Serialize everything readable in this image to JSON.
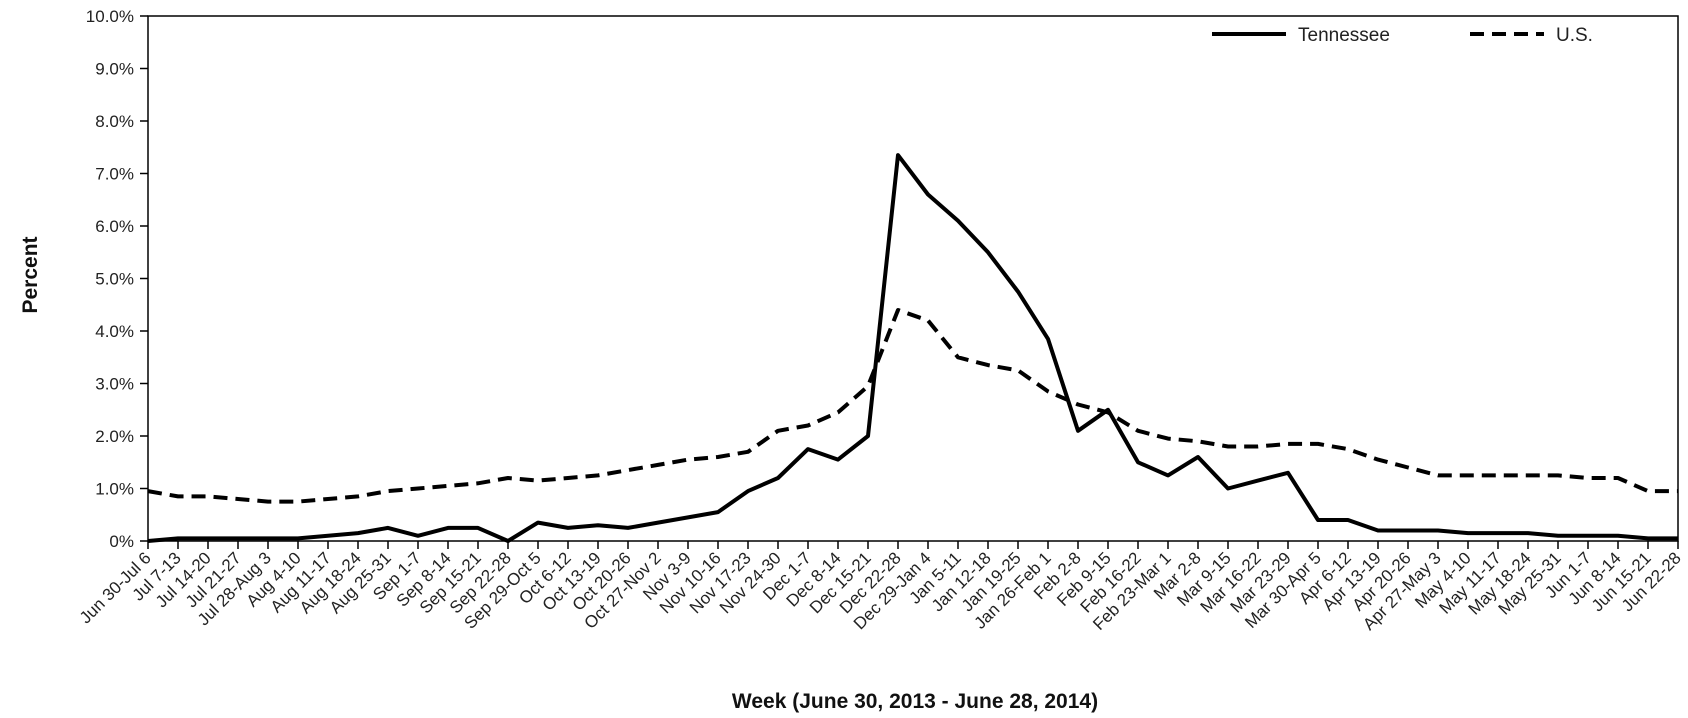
{
  "chart_data": {
    "type": "line",
    "title": "",
    "xlabel": "Week (June 30, 2013 - June 28, 2014)",
    "ylabel": "Percent",
    "ylim": [
      0,
      10
    ],
    "y_ticks": [
      "0%",
      "1.0%",
      "2.0%",
      "3.0%",
      "4.0%",
      "5.0%",
      "6.0%",
      "7.0%",
      "8.0%",
      "9.0%",
      "10.0%"
    ],
    "grid": false,
    "legend_position": "top-right",
    "x_labels": [
      "Jun 30-Jul 6",
      "Jul 7-13",
      "Jul 14-20",
      "Jul 21-27",
      "Jul 28-Aug 3",
      "Aug 4-10",
      "Aug 11-17",
      "Aug 18-24",
      "Aug 25-31",
      "Sep 1-7",
      "Sep 8-14",
      "Sep 15-21",
      "Sep 22-28",
      "Sep 29-Oct 5",
      "Oct 6-12",
      "Oct 13-19",
      "Oct 20-26",
      "Oct 27-Nov 2",
      "Nov 3-9",
      "Nov 10-16",
      "Nov 17-23",
      "Nov 24-30",
      "Dec 1-7",
      "Dec 8-14",
      "Dec 15-21",
      "Dec 22-28",
      "Dec 29-Jan 4",
      "Jan 5-11",
      "Jan 12-18",
      "Jan 19-25",
      "Jan 26-Feb 1",
      "Feb 2-8",
      "Feb 9-15",
      "Feb 16-22",
      "Feb 23-Mar 1",
      "Mar 2-8",
      "Mar 9-15",
      "Mar 16-22",
      "Mar 23-29",
      "Mar 30-Apr 5",
      "Apr 6-12",
      "Apr 13-19",
      "Apr 20-26",
      "Apr 27-May 3",
      "May 4-10",
      "May 11-17",
      "May 18-24",
      "May 25-31",
      "Jun 1-7",
      "Jun 8-14",
      "Jun 15-21",
      "Jun 22-28"
    ],
    "series": [
      {
        "name": "Tennessee",
        "style": "solid",
        "color": "#000000",
        "values": [
          0.0,
          0.05,
          0.05,
          0.05,
          0.05,
          0.05,
          0.1,
          0.15,
          0.25,
          0.1,
          0.25,
          0.25,
          0.0,
          0.35,
          0.25,
          0.3,
          0.25,
          0.35,
          0.45,
          0.55,
          0.95,
          1.2,
          1.75,
          1.55,
          2.0,
          7.35,
          6.6,
          6.1,
          5.5,
          4.75,
          3.85,
          2.1,
          2.5,
          1.5,
          1.25,
          1.6,
          1.0,
          1.15,
          1.3,
          0.4,
          0.4,
          0.2,
          0.2,
          0.2,
          0.15,
          0.15,
          0.15,
          0.1,
          0.1,
          0.1,
          0.05,
          0.05
        ]
      },
      {
        "name": "U.S.",
        "style": "dashed",
        "color": "#000000",
        "values": [
          0.95,
          0.85,
          0.85,
          0.8,
          0.75,
          0.75,
          0.8,
          0.85,
          0.95,
          1.0,
          1.05,
          1.1,
          1.2,
          1.15,
          1.2,
          1.25,
          1.35,
          1.45,
          1.55,
          1.6,
          1.7,
          2.1,
          2.2,
          2.45,
          2.95,
          4.4,
          4.2,
          3.5,
          3.35,
          3.25,
          2.85,
          2.6,
          2.45,
          2.1,
          1.95,
          1.9,
          1.8,
          1.8,
          1.85,
          1.85,
          1.75,
          1.55,
          1.4,
          1.25,
          1.25,
          1.25,
          1.25,
          1.25,
          1.2,
          1.2,
          0.95,
          0.95
        ]
      }
    ]
  }
}
